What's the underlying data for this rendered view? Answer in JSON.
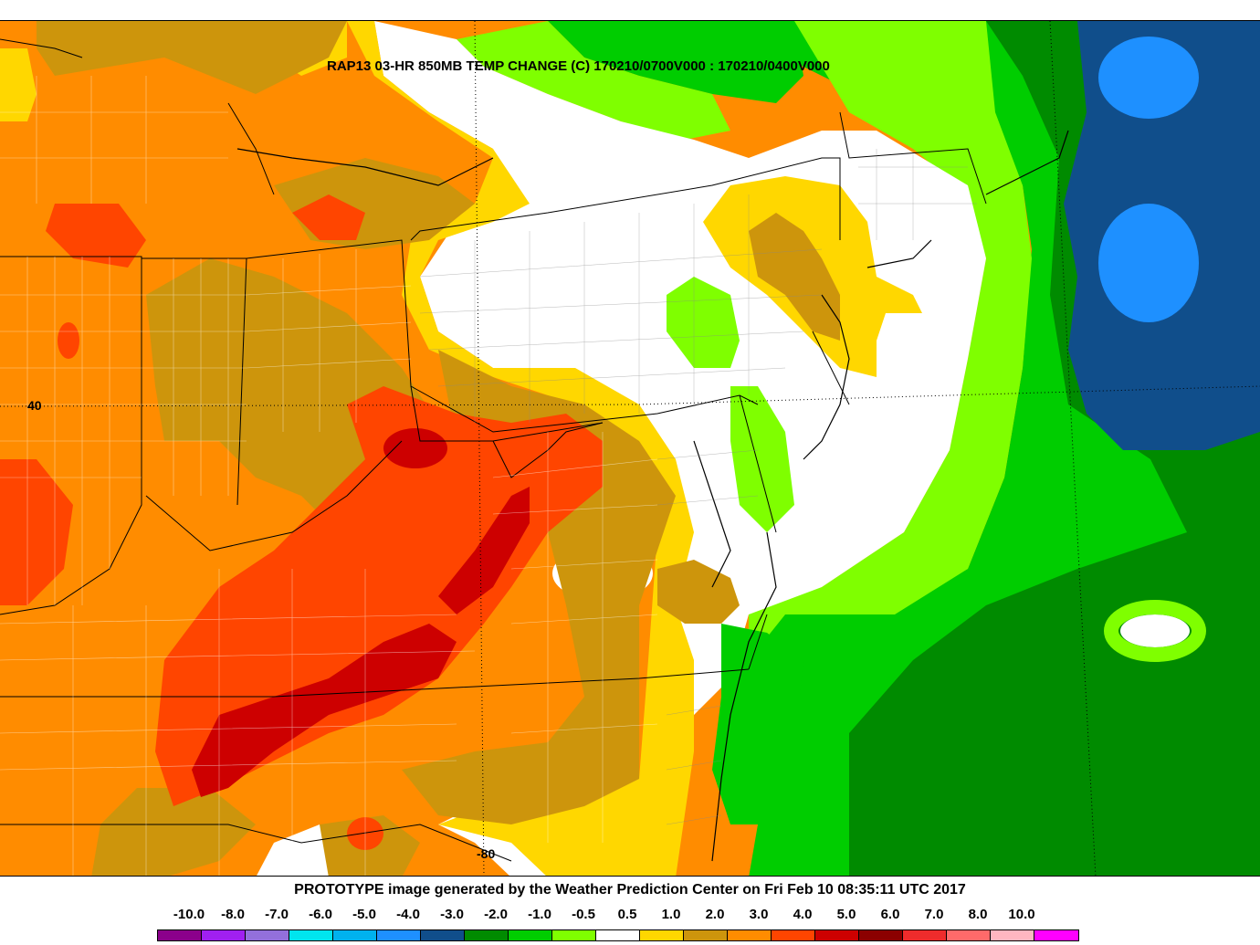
{
  "map": {
    "title": "RAP13 03-HR 850MB TEMP CHANGE (C) 170210/0700V000 : 170210/0400V000",
    "lat_label": "40",
    "lon_label": "-80"
  },
  "footer": {
    "text": "PROTOTYPE image generated by the Weather Prediction Center on Fri Feb 10 08:35:11 UTC 2017"
  },
  "legend": {
    "labels": [
      "-10.0",
      "-8.0",
      "-7.0",
      "-6.0",
      "-5.0",
      "-4.0",
      "-3.0",
      "-2.0",
      "-1.0",
      "-0.5",
      "0.5",
      "1.0",
      "2.0",
      "3.0",
      "4.0",
      "5.0",
      "6.0",
      "7.0",
      "8.0",
      "10.0"
    ],
    "colors": [
      "#8b008b",
      "#a020f0",
      "#9370db",
      "#00e5ee",
      "#00b2ee",
      "#1e90ff",
      "#104e8b",
      "#008b00",
      "#00cd00",
      "#7fff00",
      "#ffffff",
      "#ffd700",
      "#cd950c",
      "#ff8c00",
      "#ff4500",
      "#cd0000",
      "#8b0000",
      "#ee2c2c",
      "#ff6a6a",
      "#ffb6c1",
      "#ff00ff"
    ]
  }
}
